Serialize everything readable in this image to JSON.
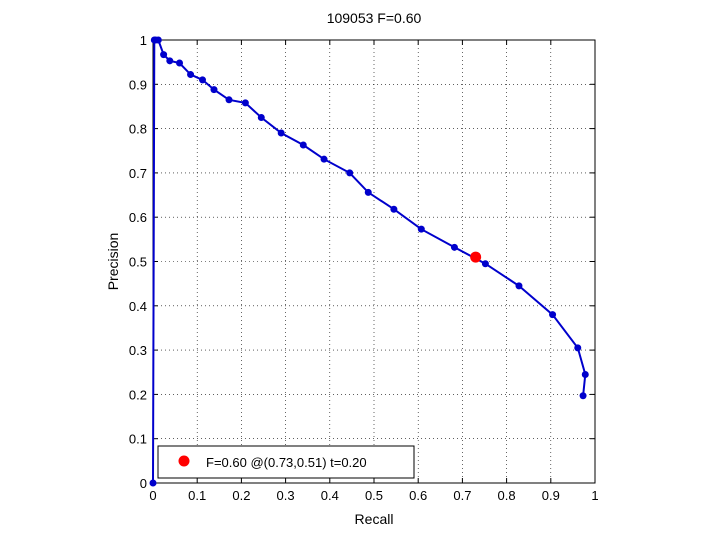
{
  "chart_data": {
    "type": "line",
    "title": "109053 F=0.60",
    "xlabel": "Recall",
    "ylabel": "Precision",
    "xlim": [
      0,
      1
    ],
    "ylim": [
      0,
      1
    ],
    "grid": true,
    "xticks": [
      "0",
      "0.1",
      "0.2",
      "0.3",
      "0.4",
      "0.5",
      "0.6",
      "0.7",
      "0.8",
      "0.9",
      "1"
    ],
    "yticks": [
      "0",
      "0.1",
      "0.2",
      "0.3",
      "0.4",
      "0.5",
      "0.6",
      "0.7",
      "0.8",
      "0.9",
      "1"
    ],
    "series": [
      {
        "color": "#0000cc",
        "x": [
          0.0,
          0.003,
          0.006,
          0.012,
          0.024,
          0.038,
          0.06,
          0.085,
          0.112,
          0.138,
          0.172,
          0.209,
          0.245,
          0.29,
          0.34,
          0.387,
          0.445,
          0.487,
          0.545,
          0.607,
          0.682,
          0.752,
          0.828,
          0.904,
          0.961,
          0.978,
          0.973
        ],
        "y": [
          0.0,
          1.0,
          1.0,
          1.0,
          0.967,
          0.953,
          0.948,
          0.922,
          0.91,
          0.888,
          0.865,
          0.858,
          0.825,
          0.79,
          0.763,
          0.731,
          0.7,
          0.656,
          0.618,
          0.573,
          0.532,
          0.495,
          0.445,
          0.38,
          0.305,
          0.245,
          0.197
        ]
      }
    ],
    "best_point": {
      "x": 0.73,
      "y": 0.51,
      "color": "#ff0000"
    },
    "legend": {
      "location": "bottom-left",
      "text": "F=0.60 @(0.73,0.51) t=0.20"
    }
  }
}
